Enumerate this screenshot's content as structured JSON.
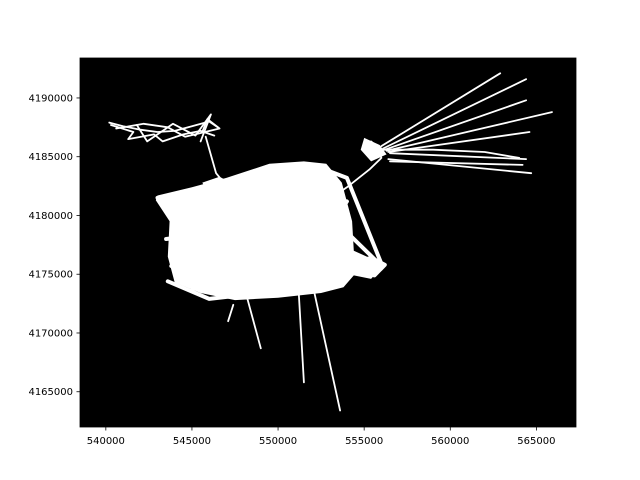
{
  "chart_data": {
    "type": "line",
    "title": "",
    "xlabel": "",
    "ylabel": "",
    "xlim": [
      538500,
      567300
    ],
    "ylim": [
      4162000,
      4193400
    ],
    "grid": false,
    "background_color": "#000000",
    "line_color": "#ffffff",
    "xticks": [
      540000,
      545000,
      550000,
      555000,
      560000,
      565000
    ],
    "xtick_labels": [
      "540000",
      "545000",
      "550000",
      "555000",
      "560000",
      "565000"
    ],
    "yticks": [
      4165000,
      4170000,
      4175000,
      4180000,
      4185000,
      4190000
    ],
    "ytick_labels": [
      "4165000",
      "4170000",
      "4175000",
      "4180000",
      "4185000",
      "4190000"
    ],
    "series": [
      {
        "values": [
          [
            555400,
            4186300
          ],
          [
            555700,
            4185900
          ],
          [
            556000,
            4184900
          ],
          [
            555300,
            4183900
          ],
          [
            554000,
            4182400
          ],
          [
            553600,
            4182000
          ],
          [
            552800,
            4180600
          ]
        ]
      },
      {
        "values": [
          [
            556000,
            4185900
          ],
          [
            562900,
            4192100
          ]
        ]
      },
      {
        "values": [
          [
            556100,
            4185700
          ],
          [
            564400,
            4191600
          ]
        ]
      },
      {
        "values": [
          [
            556200,
            4185600
          ],
          [
            564400,
            4189800
          ]
        ]
      },
      {
        "values": [
          [
            556300,
            4185500
          ],
          [
            565900,
            4188800
          ]
        ]
      },
      {
        "values": [
          [
            556400,
            4185400
          ],
          [
            564600,
            4187100
          ]
        ]
      },
      {
        "values": [
          [
            556500,
            4185300
          ],
          [
            564400,
            4184800
          ]
        ]
      },
      {
        "values": [
          [
            556500,
            4184600
          ],
          [
            564200,
            4184300
          ]
        ]
      },
      {
        "values": [
          [
            556400,
            4184800
          ],
          [
            564700,
            4183600
          ]
        ]
      },
      {
        "values": [
          [
            555900,
            4185600
          ],
          [
            559000,
            4185600
          ],
          [
            562000,
            4185400
          ],
          [
            564000,
            4184900
          ]
        ]
      },
      {
        "values": [
          [
            547400,
            4172400
          ],
          [
            547100,
            4171000
          ]
        ]
      },
      {
        "values": [
          [
            548200,
            4173000
          ],
          [
            549000,
            4168700
          ]
        ]
      },
      {
        "values": [
          [
            551200,
            4173500
          ],
          [
            551500,
            4165800
          ]
        ]
      },
      {
        "values": [
          [
            552100,
            4173500
          ],
          [
            553600,
            4163400
          ]
        ]
      },
      {
        "values": [
          [
            545800,
            4186700
          ],
          [
            546400,
            4183600
          ],
          [
            546900,
            4182700
          ],
          [
            547400,
            4181900
          ]
        ]
      },
      {
        "values": [
          [
            540200,
            4187900
          ],
          [
            541000,
            4187600
          ],
          [
            542000,
            4187300
          ],
          [
            543000,
            4187100
          ],
          [
            544000,
            4187200
          ],
          [
            545000,
            4187600
          ],
          [
            546000,
            4188000
          ],
          [
            546500,
            4187500
          ]
        ]
      },
      {
        "values": [
          [
            540300,
            4187700
          ],
          [
            541600,
            4187100
          ],
          [
            541300,
            4186500
          ],
          [
            542800,
            4186900
          ],
          [
            543300,
            4186300
          ],
          [
            544500,
            4186900
          ],
          [
            545500,
            4187200
          ],
          [
            546300,
            4186800
          ]
        ]
      },
      {
        "values": [
          [
            540600,
            4187400
          ],
          [
            542200,
            4187800
          ],
          [
            543600,
            4187500
          ],
          [
            544600,
            4186700
          ],
          [
            546600,
            4187400
          ],
          [
            545900,
            4188200
          ],
          [
            545600,
            4187100
          ]
        ]
      },
      {
        "values": [
          [
            541800,
            4187700
          ],
          [
            542400,
            4186300
          ],
          [
            543900,
            4187800
          ],
          [
            545200,
            4186800
          ],
          [
            546100,
            4188600
          ],
          [
            545500,
            4186300
          ]
        ]
      },
      {
        "values": [
          [
            543000,
            4181500
          ],
          [
            546000,
            4182300
          ],
          [
            549000,
            4183400
          ],
          [
            552000,
            4184300
          ],
          [
            554000,
            4183200
          ],
          [
            556000,
            4175900
          ]
        ]
      },
      {
        "values": [
          [
            543600,
            4181000
          ],
          [
            547000,
            4180400
          ],
          [
            550000,
            4180900
          ],
          [
            553000,
            4180000
          ],
          [
            555800,
            4176000
          ]
        ]
      },
      {
        "values": [
          [
            543500,
            4178000
          ],
          [
            547000,
            4178600
          ],
          [
            550000,
            4177400
          ],
          [
            553500,
            4177900
          ],
          [
            555000,
            4175800
          ]
        ]
      },
      {
        "values": [
          [
            543800,
            4175700
          ],
          [
            546500,
            4174200
          ],
          [
            549500,
            4173200
          ],
          [
            552500,
            4174000
          ],
          [
            553800,
            4174400
          ]
        ]
      },
      {
        "values": [
          [
            543600,
            4174400
          ],
          [
            546000,
            4172900
          ],
          [
            549000,
            4173400
          ],
          [
            551500,
            4173600
          ],
          [
            553600,
            4174800
          ]
        ]
      },
      {
        "values": [
          [
            543900,
            4178800
          ],
          [
            547000,
            4182000
          ],
          [
            550000,
            4181300
          ],
          [
            552800,
            4182400
          ]
        ]
      },
      {
        "values": [
          [
            544200,
            4176200
          ],
          [
            547200,
            4177100
          ],
          [
            549500,
            4175400
          ],
          [
            552600,
            4176500
          ],
          [
            554500,
            4175600
          ]
        ]
      },
      {
        "values": [
          [
            546000,
            4182100
          ],
          [
            548000,
            4178200
          ],
          [
            550500,
            4183300
          ],
          [
            552400,
            4177600
          ],
          [
            554000,
            4181200
          ]
        ]
      },
      {
        "values": [
          [
            544500,
            4180900
          ],
          [
            547500,
            4175600
          ],
          [
            550800,
            4179700
          ],
          [
            553200,
            4173900
          ]
        ]
      },
      {
        "values": [
          [
            545000,
            4173600
          ],
          [
            548500,
            4180500
          ],
          [
            551800,
            4174600
          ],
          [
            553800,
            4179400
          ]
        ]
      },
      {
        "values": [
          [
            554500,
            4176000
          ],
          [
            555400,
            4176400
          ],
          [
            556200,
            4175800
          ],
          [
            555600,
            4174900
          ],
          [
            554600,
            4175300
          ]
        ]
      }
    ]
  }
}
